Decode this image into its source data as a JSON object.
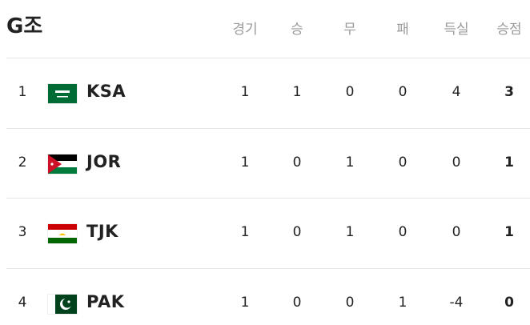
{
  "header": {
    "title": "G조"
  },
  "table": {
    "columns": [
      "경기",
      "승",
      "무",
      "패",
      "득실",
      "승점"
    ],
    "rows": [
      {
        "rank": 1,
        "team": "KSA",
        "stats": [
          1,
          1,
          0,
          0,
          4,
          3
        ]
      },
      {
        "rank": 2,
        "team": "JOR",
        "stats": [
          1,
          0,
          1,
          0,
          0,
          1
        ]
      },
      {
        "rank": 3,
        "team": "TJK",
        "stats": [
          1,
          0,
          1,
          0,
          0,
          1
        ]
      },
      {
        "rank": 4,
        "team": "PAK",
        "stats": [
          1,
          0,
          0,
          1,
          -4,
          0
        ]
      }
    ]
  }
}
